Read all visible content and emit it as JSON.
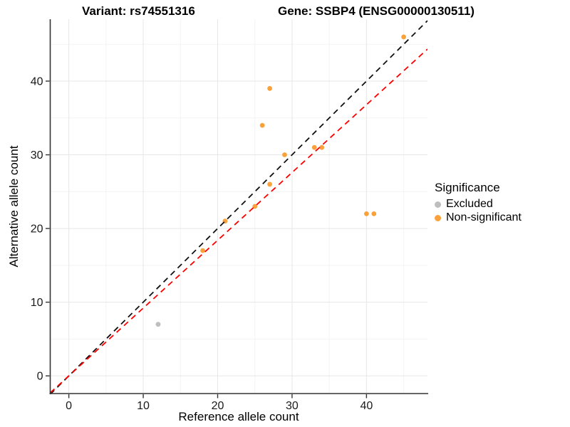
{
  "header": {
    "title_left": "Variant: rs74551316",
    "title_right": "Gene: SSBP4 (ENSG00000130511)"
  },
  "chart_data": {
    "type": "scatter",
    "xlabel": "Reference allele count",
    "ylabel": "Alternative allele count",
    "xlim": [
      -2.5,
      48.2
    ],
    "ylim": [
      -2.4,
      48.4
    ],
    "x_ticks": [
      0,
      10,
      20,
      30,
      40
    ],
    "y_ticks": [
      0,
      10,
      20,
      30,
      40
    ],
    "minor_grid_offset": 5,
    "grid": true,
    "legend_position": "right",
    "point_radius": 3.4,
    "series": [
      {
        "name": "Excluded",
        "color": "#BEBEBE",
        "points": [
          [
            12,
            7
          ]
        ]
      },
      {
        "name": "Non-significant",
        "color": "#F9A23B",
        "points": [
          [
            18,
            17
          ],
          [
            21,
            21
          ],
          [
            25,
            23
          ],
          [
            27,
            26
          ],
          [
            29,
            30
          ],
          [
            33,
            31
          ],
          [
            34,
            31
          ],
          [
            26,
            34
          ],
          [
            27,
            39
          ],
          [
            40,
            22
          ],
          [
            41,
            22
          ],
          [
            45,
            46
          ]
        ]
      }
    ],
    "ablines": [
      {
        "name": "identity-line",
        "color": "#111111",
        "slope": 1,
        "intercept": 0,
        "dash": "8 6"
      },
      {
        "name": "ratio-line",
        "color": "#FF0000",
        "slope": 0.92,
        "intercept": 0,
        "dash": "8 6"
      }
    ]
  },
  "legend": {
    "title": "Significance",
    "items": [
      {
        "label": "Excluded",
        "color": "#BEBEBE"
      },
      {
        "label": "Non-significant",
        "color": "#F9A23B"
      }
    ]
  },
  "colors": {
    "grid_major": "#E7E7E7",
    "grid_minor": "#F3F3F3",
    "axis_line": "#333333",
    "tick_mark": "#333333",
    "tick_text": "#1A1A1A",
    "background": "#FFFFFF"
  }
}
